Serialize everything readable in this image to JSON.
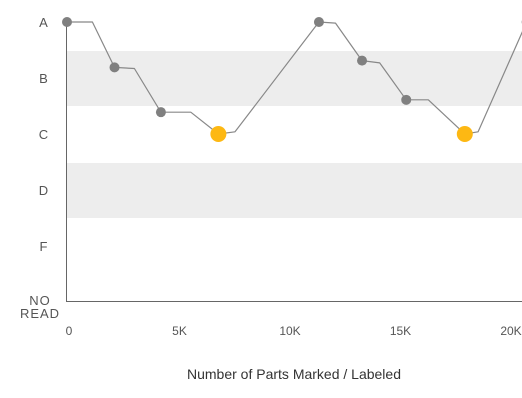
{
  "chart_data": {
    "type": "line",
    "title": "",
    "xlabel": "Number of Parts Marked / Labeled",
    "ylabel": "",
    "xlim": [
      0,
      20000
    ],
    "x_ticks": [
      {
        "value": 0,
        "label": "0"
      },
      {
        "value": 5000,
        "label": "5K"
      },
      {
        "value": 10000,
        "label": "10K"
      },
      {
        "value": 15000,
        "label": "15K"
      },
      {
        "value": 20000,
        "label": "20K"
      }
    ],
    "y_categories": [
      "A",
      "B",
      "C",
      "D",
      "F",
      "NO READ"
    ],
    "y_bands": [
      {
        "category": "B",
        "shaded": true
      },
      {
        "category": "D",
        "shaded": true
      }
    ],
    "colors": {
      "line": "#888888",
      "marker": "#808080",
      "highlight": "#fdb813",
      "band": "#ededed",
      "axis": "#666666"
    },
    "series": [
      {
        "points": [
          {
            "x": 0,
            "y": 0.0
          },
          {
            "x": 1150,
            "y": 0.0
          },
          {
            "x": 2150,
            "y": 0.81
          },
          {
            "x": 3050,
            "y": 0.83
          },
          {
            "x": 4250,
            "y": 1.61
          },
          {
            "x": 5600,
            "y": 1.61
          },
          {
            "x": 6850,
            "y": 2.0
          },
          {
            "x": 7600,
            "y": 1.96
          },
          {
            "x": 11400,
            "y": 0.0
          },
          {
            "x": 12150,
            "y": 0.02
          },
          {
            "x": 13350,
            "y": 0.69
          },
          {
            "x": 14150,
            "y": 0.73
          },
          {
            "x": 15350,
            "y": 1.39
          },
          {
            "x": 16350,
            "y": 1.39
          },
          {
            "x": 18000,
            "y": 2.0
          },
          {
            "x": 18600,
            "y": 1.96
          },
          {
            "x": 20800,
            "y": 0.0
          }
        ],
        "markers": [
          {
            "x": 0,
            "y": 0.0
          },
          {
            "x": 2150,
            "y": 0.81
          },
          {
            "x": 4250,
            "y": 1.61
          },
          {
            "x": 11400,
            "y": 0.0
          },
          {
            "x": 13350,
            "y": 0.69
          },
          {
            "x": 15350,
            "y": 1.39
          },
          {
            "x": 20800,
            "y": 0.0
          }
        ],
        "highlight_markers": [
          {
            "x": 6850,
            "y": 2.0
          },
          {
            "x": 18000,
            "y": 2.0
          }
        ]
      }
    ]
  }
}
